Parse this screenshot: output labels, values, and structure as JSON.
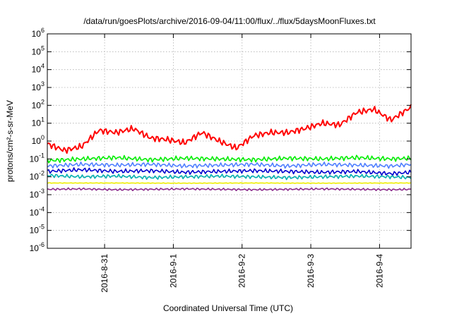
{
  "chart_data": {
    "type": "line",
    "title": "/data/run/goesPlots/archive/2016-09-04/11:00/flux/../flux/5daysMoonFluxes.txt",
    "xlabel": "Coordinated Universal Time (UTC)",
    "ylabel": "protons/cm²-s-sr-MeV",
    "y_scale": "log",
    "ylim": [
      1e-06,
      1000000.0
    ],
    "y_ticks": [
      {
        "value": 1e-06,
        "base": "10",
        "exp": "-6"
      },
      {
        "value": 1e-05,
        "base": "10",
        "exp": "-5"
      },
      {
        "value": 0.0001,
        "base": "10",
        "exp": "-4"
      },
      {
        "value": 0.001,
        "base": "10",
        "exp": "-3"
      },
      {
        "value": 0.01,
        "base": "10",
        "exp": "-2"
      },
      {
        "value": 0.1,
        "base": "10",
        "exp": "-1"
      },
      {
        "value": 1.0,
        "base": "10",
        "exp": "0"
      },
      {
        "value": 10.0,
        "base": "10",
        "exp": "1"
      },
      {
        "value": 100.0,
        "base": "10",
        "exp": "2"
      },
      {
        "value": 1000.0,
        "base": "10",
        "exp": "3"
      },
      {
        "value": 10000.0,
        "base": "10",
        "exp": "4"
      },
      {
        "value": 100000.0,
        "base": "10",
        "exp": "5"
      },
      {
        "value": 1000000.0,
        "base": "10",
        "exp": "6"
      }
    ],
    "xlim": [
      "2016-08-30 04:00",
      "2016-09-04 11:00"
    ],
    "x_ticks": [
      "2016-8-31",
      "2016-9-1",
      "2016-9-2",
      "2016-9-3",
      "2016-9-4"
    ],
    "grid": true,
    "legend": "none",
    "series": [
      {
        "color": "#ff0000",
        "x": [
          "2016-08-30 04:00",
          "2016-08-30 10:00",
          "2016-08-30 16:00",
          "2016-08-30 22:00",
          "2016-08-31 04:00",
          "2016-08-31 10:00",
          "2016-08-31 16:00",
          "2016-08-31 22:00",
          "2016-09-01 04:00",
          "2016-09-01 10:00",
          "2016-09-01 16:00",
          "2016-09-01 22:00",
          "2016-09-02 04:00",
          "2016-09-02 10:00",
          "2016-09-02 16:00",
          "2016-09-02 22:00",
          "2016-09-03 04:00",
          "2016-09-03 10:00",
          "2016-09-03 16:00",
          "2016-09-03 22:00",
          "2016-09-04 04:00",
          "2016-09-04 11:00"
        ],
        "values": [
          0.7,
          0.3,
          0.5,
          4,
          3,
          5,
          1.5,
          1.2,
          0.8,
          3,
          1,
          0.4,
          2,
          3,
          3,
          5,
          10,
          8,
          40,
          60,
          15,
          80
        ]
      },
      {
        "color": "#00ee00",
        "x": [
          "2016-08-30 04:00",
          "2016-08-30 16:00",
          "2016-08-31 04:00",
          "2016-08-31 16:00",
          "2016-09-01 04:00",
          "2016-09-01 16:00",
          "2016-09-02 04:00",
          "2016-09-02 16:00",
          "2016-09-03 04:00",
          "2016-09-03 16:00",
          "2016-09-04 04:00",
          "2016-09-04 11:00"
        ],
        "values": [
          0.08,
          0.1,
          0.12,
          0.09,
          0.11,
          0.1,
          0.09,
          0.11,
          0.1,
          0.12,
          0.1,
          0.11
        ]
      },
      {
        "color": "#4f7fff",
        "x": [
          "2016-08-30 04:00",
          "2016-08-30 16:00",
          "2016-08-31 04:00",
          "2016-08-31 16:00",
          "2016-09-01 04:00",
          "2016-09-01 16:00",
          "2016-09-02 04:00",
          "2016-09-02 16:00",
          "2016-09-03 04:00",
          "2016-09-03 16:00",
          "2016-09-04 04:00",
          "2016-09-04 11:00"
        ],
        "values": [
          0.04,
          0.05,
          0.045,
          0.05,
          0.04,
          0.045,
          0.05,
          0.04,
          0.05,
          0.045,
          0.04,
          0.05
        ]
      },
      {
        "color": "#0000cc",
        "x": [
          "2016-08-30 04:00",
          "2016-08-30 16:00",
          "2016-08-31 04:00",
          "2016-08-31 16:00",
          "2016-09-01 04:00",
          "2016-09-01 16:00",
          "2016-09-02 04:00",
          "2016-09-02 16:00",
          "2016-09-03 04:00",
          "2016-09-03 16:00",
          "2016-09-04 04:00",
          "2016-09-04 11:00"
        ],
        "values": [
          0.02,
          0.025,
          0.02,
          0.022,
          0.018,
          0.02,
          0.022,
          0.02,
          0.018,
          0.02,
          0.015,
          0.018
        ]
      },
      {
        "color": "#00b0b0",
        "x": [
          "2016-08-30 04:00",
          "2016-08-30 16:00",
          "2016-08-31 04:00",
          "2016-08-31 16:00",
          "2016-09-01 04:00",
          "2016-09-01 16:00",
          "2016-09-02 04:00",
          "2016-09-02 16:00",
          "2016-09-03 04:00",
          "2016-09-03 16:00",
          "2016-09-04 04:00",
          "2016-09-04 11:00"
        ],
        "values": [
          0.012,
          0.01,
          0.011,
          0.009,
          0.01,
          0.011,
          0.01,
          0.009,
          0.01,
          0.011,
          0.01,
          0.009
        ]
      },
      {
        "color": "#eeee00",
        "x": [
          "2016-08-30 04:00",
          "2016-08-31 04:00",
          "2016-09-01 04:00",
          "2016-09-02 04:00",
          "2016-09-03 04:00",
          "2016-09-04 04:00",
          "2016-09-04 11:00"
        ],
        "values": [
          0.0045,
          0.0045,
          0.0044,
          0.0045,
          0.0044,
          0.0045,
          0.0045
        ]
      },
      {
        "color": "#8b2b8b",
        "x": [
          "2016-08-30 04:00",
          "2016-08-30 16:00",
          "2016-08-31 04:00",
          "2016-08-31 16:00",
          "2016-09-01 04:00",
          "2016-09-01 16:00",
          "2016-09-02 04:00",
          "2016-09-02 16:00",
          "2016-09-03 04:00",
          "2016-09-03 16:00",
          "2016-09-04 04:00",
          "2016-09-04 11:00"
        ],
        "values": [
          0.002,
          0.0021,
          0.0019,
          0.002,
          0.0021,
          0.002,
          0.0019,
          0.002,
          0.0021,
          0.002,
          0.0019,
          0.002
        ]
      }
    ]
  }
}
